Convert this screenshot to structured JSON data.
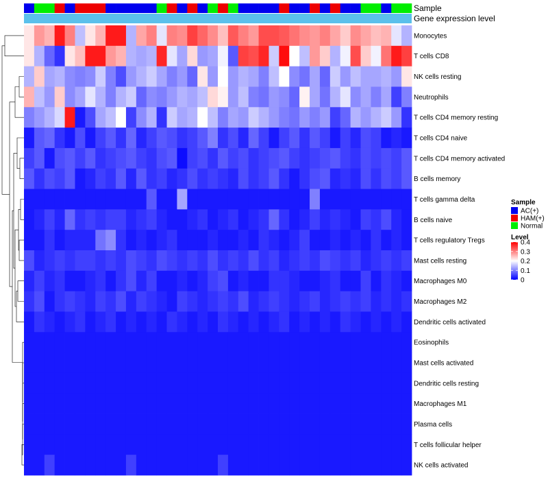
{
  "chart_data": {
    "type": "heatmap",
    "title": "",
    "annotation_labels": [
      "Sample",
      "Gene expression level"
    ],
    "rows": [
      "Monocytes",
      "T cells CD8",
      "NK cells resting",
      "Neutrophils",
      "T cells CD4 memory resting",
      "T cells CD4 naive",
      "T cells CD4 memory activated",
      "B cells memory",
      "T cells gamma delta",
      "B cells naive",
      "T cells regulatory  Tregs",
      "Mast cells resting",
      "Macrophages M0",
      "Macrophages M2",
      "Dendritic cells activated",
      "Eosinophils",
      "Mast cells activated",
      "Dendritic cells resting",
      "Macrophages M1",
      "Plasma cells",
      "T cells follicular helper",
      "NK cells activated"
    ],
    "n_columns": 38,
    "sample_groups": [
      "AC",
      "Normal",
      "Normal",
      "HAM",
      "AC",
      "HAM",
      "HAM",
      "HAM",
      "AC",
      "AC",
      "AC",
      "AC",
      "AC",
      "Normal",
      "HAM",
      "AC",
      "HAM",
      "AC",
      "Normal",
      "HAM",
      "Normal",
      "AC",
      "AC",
      "AC",
      "AC",
      "HAM",
      "AC",
      "AC",
      "HAM",
      "AC",
      "HAM",
      "AC",
      "AC",
      "Normal",
      "Normal",
      "AC",
      "Normal",
      "Normal"
    ],
    "values": [
      [
        0.22,
        0.28,
        0.26,
        0.38,
        0.3,
        0.15,
        0.22,
        0.26,
        0.38,
        0.38,
        0.14,
        0.27,
        0.3,
        0.18,
        0.3,
        0.29,
        0.35,
        0.32,
        0.29,
        0.25,
        0.33,
        0.3,
        0.28,
        0.34,
        0.34,
        0.33,
        0.31,
        0.29,
        0.28,
        0.3,
        0.27,
        0.24,
        0.29,
        0.27,
        0.25,
        0.26,
        0.18,
        0.14
      ],
      [
        0.22,
        0.14,
        0.08,
        0.04,
        0.22,
        0.25,
        0.38,
        0.38,
        0.28,
        0.26,
        0.14,
        0.13,
        0.14,
        0.37,
        0.18,
        0.13,
        0.23,
        0.12,
        0.13,
        0.19,
        0.07,
        0.35,
        0.34,
        0.37,
        0.16,
        0.39,
        0.2,
        0.15,
        0.28,
        0.24,
        0.14,
        0.19,
        0.34,
        0.24,
        0.19,
        0.31,
        0.38,
        0.35
      ],
      [
        0.14,
        0.24,
        0.13,
        0.14,
        0.11,
        0.1,
        0.11,
        0.16,
        0.1,
        0.06,
        0.12,
        0.14,
        0.16,
        0.13,
        0.1,
        0.12,
        0.08,
        0.22,
        0.12,
        0.2,
        0.12,
        0.14,
        0.13,
        0.1,
        0.15,
        0.2,
        0.11,
        0.09,
        0.13,
        0.08,
        0.16,
        0.12,
        0.15,
        0.13,
        0.13,
        0.14,
        0.12,
        0.22
      ],
      [
        0.26,
        0.15,
        0.12,
        0.24,
        0.11,
        0.13,
        0.18,
        0.14,
        0.1,
        0.14,
        0.16,
        0.08,
        0.11,
        0.1,
        0.12,
        0.14,
        0.13,
        0.15,
        0.23,
        0.21,
        0.12,
        0.15,
        0.1,
        0.09,
        0.12,
        0.11,
        0.08,
        0.21,
        0.13,
        0.09,
        0.14,
        0.18,
        0.11,
        0.13,
        0.1,
        0.13,
        0.05,
        0.1
      ],
      [
        0.1,
        0.12,
        0.14,
        0.17,
        0.38,
        0.02,
        0.06,
        0.13,
        0.15,
        0.2,
        0.05,
        0.11,
        0.14,
        0.04,
        0.16,
        0.13,
        0.14,
        0.2,
        0.15,
        0.1,
        0.13,
        0.12,
        0.16,
        0.14,
        0.12,
        0.1,
        0.09,
        0.12,
        0.1,
        0.12,
        0.05,
        0.08,
        0.14,
        0.12,
        0.14,
        0.16,
        0.12,
        0.04
      ],
      [
        0.02,
        0.07,
        0.08,
        0.04,
        0.02,
        0.06,
        0.02,
        0.05,
        0.07,
        0.04,
        0.08,
        0.03,
        0.05,
        0.07,
        0.06,
        0.04,
        0.05,
        0.07,
        0.1,
        0.04,
        0.06,
        0.03,
        0.08,
        0.05,
        0.02,
        0.05,
        0.07,
        0.04,
        0.07,
        0.05,
        0.02,
        0.05,
        0.03,
        0.06,
        0.05,
        0.02,
        0.03,
        0.02
      ],
      [
        0.05,
        0.07,
        0.02,
        0.06,
        0.07,
        0.05,
        0.07,
        0.04,
        0.05,
        0.06,
        0.07,
        0.05,
        0.04,
        0.06,
        0.07,
        0.01,
        0.05,
        0.06,
        0.04,
        0.07,
        0.05,
        0.06,
        0.04,
        0.05,
        0.06,
        0.07,
        0.05,
        0.04,
        0.05,
        0.06,
        0.07,
        0.05,
        0.04,
        0.06,
        0.05,
        0.06,
        0.05,
        0.07
      ],
      [
        0.07,
        0.04,
        0.06,
        0.05,
        0.07,
        0.02,
        0.03,
        0.05,
        0.04,
        0.07,
        0.03,
        0.07,
        0.04,
        0.05,
        0.03,
        0.04,
        0.06,
        0.04,
        0.05,
        0.04,
        0.03,
        0.06,
        0.04,
        0.05,
        0.07,
        0.04,
        0.02,
        0.04,
        0.06,
        0.07,
        0.03,
        0.04,
        0.03,
        0.06,
        0.04,
        0.06,
        0.05,
        0.07
      ],
      [
        0.02,
        0.02,
        0.02,
        0.02,
        0.02,
        0.02,
        0.02,
        0.02,
        0.02,
        0.02,
        0.02,
        0.02,
        0.07,
        0.02,
        0.02,
        0.13,
        0.02,
        0.02,
        0.02,
        0.02,
        0.02,
        0.02,
        0.02,
        0.02,
        0.02,
        0.02,
        0.02,
        0.02,
        0.1,
        0.02,
        0.02,
        0.02,
        0.02,
        0.02,
        0.02,
        0.02,
        0.02,
        0.02
      ],
      [
        0.02,
        0.03,
        0.05,
        0.03,
        0.08,
        0.04,
        0.05,
        0.04,
        0.05,
        0.05,
        0.03,
        0.04,
        0.05,
        0.03,
        0.02,
        0.02,
        0.03,
        0.04,
        0.02,
        0.03,
        0.04,
        0.02,
        0.03,
        0.04,
        0.08,
        0.04,
        0.02,
        0.03,
        0.05,
        0.03,
        0.04,
        0.03,
        0.02,
        0.05,
        0.04,
        0.06,
        0.03,
        0.02
      ],
      [
        0.02,
        0.02,
        0.04,
        0.02,
        0.03,
        0.03,
        0.03,
        0.09,
        0.11,
        0.04,
        0.02,
        0.03,
        0.02,
        0.03,
        0.04,
        0.02,
        0.02,
        0.02,
        0.03,
        0.02,
        0.02,
        0.03,
        0.02,
        0.04,
        0.03,
        0.02,
        0.03,
        0.05,
        0.02,
        0.02,
        0.03,
        0.02,
        0.03,
        0.02,
        0.04,
        0.02,
        0.03,
        0.02
      ],
      [
        0.06,
        0.03,
        0.04,
        0.05,
        0.04,
        0.05,
        0.05,
        0.04,
        0.05,
        0.04,
        0.06,
        0.05,
        0.04,
        0.06,
        0.05,
        0.04,
        0.05,
        0.04,
        0.06,
        0.04,
        0.05,
        0.04,
        0.06,
        0.04,
        0.05,
        0.03,
        0.04,
        0.05,
        0.04,
        0.06,
        0.05,
        0.04,
        0.05,
        0.03,
        0.04,
        0.05,
        0.04,
        0.05
      ],
      [
        0.03,
        0.05,
        0.03,
        0.04,
        0.02,
        0.02,
        0.03,
        0.04,
        0.02,
        0.04,
        0.06,
        0.03,
        0.05,
        0.02,
        0.02,
        0.03,
        0.02,
        0.03,
        0.05,
        0.06,
        0.02,
        0.03,
        0.02,
        0.02,
        0.04,
        0.04,
        0.03,
        0.02,
        0.02,
        0.03,
        0.04,
        0.02,
        0.02,
        0.05,
        0.02,
        0.04,
        0.03,
        0.02
      ],
      [
        0.04,
        0.06,
        0.02,
        0.04,
        0.05,
        0.04,
        0.03,
        0.05,
        0.04,
        0.06,
        0.03,
        0.05,
        0.04,
        0.03,
        0.02,
        0.05,
        0.04,
        0.03,
        0.04,
        0.05,
        0.04,
        0.06,
        0.03,
        0.04,
        0.05,
        0.04,
        0.03,
        0.04,
        0.05,
        0.03,
        0.04,
        0.05,
        0.04,
        0.05,
        0.03,
        0.04,
        0.03,
        0.04
      ],
      [
        0.02,
        0.04,
        0.03,
        0.02,
        0.03,
        0.04,
        0.02,
        0.03,
        0.04,
        0.02,
        0.03,
        0.02,
        0.03,
        0.02,
        0.04,
        0.03,
        0.02,
        0.03,
        0.02,
        0.04,
        0.03,
        0.02,
        0.03,
        0.02,
        0.03,
        0.04,
        0.02,
        0.03,
        0.02,
        0.03,
        0.02,
        0.04,
        0.03,
        0.02,
        0.03,
        0.02,
        0.03,
        0.02
      ],
      [
        0.02,
        0.02,
        0.02,
        0.02,
        0.02,
        0.02,
        0.02,
        0.02,
        0.02,
        0.02,
        0.02,
        0.02,
        0.02,
        0.02,
        0.02,
        0.02,
        0.02,
        0.02,
        0.02,
        0.02,
        0.02,
        0.02,
        0.02,
        0.02,
        0.02,
        0.02,
        0.02,
        0.02,
        0.02,
        0.02,
        0.02,
        0.02,
        0.02,
        0.02,
        0.02,
        0.02,
        0.02,
        0.02
      ],
      [
        0.02,
        0.02,
        0.02,
        0.02,
        0.02,
        0.02,
        0.02,
        0.02,
        0.02,
        0.02,
        0.02,
        0.02,
        0.02,
        0.02,
        0.02,
        0.02,
        0.02,
        0.02,
        0.02,
        0.02,
        0.02,
        0.02,
        0.02,
        0.02,
        0.02,
        0.02,
        0.02,
        0.02,
        0.02,
        0.02,
        0.02,
        0.02,
        0.02,
        0.02,
        0.02,
        0.02,
        0.02,
        0.02
      ],
      [
        0.02,
        0.02,
        0.02,
        0.02,
        0.02,
        0.02,
        0.02,
        0.02,
        0.02,
        0.02,
        0.02,
        0.02,
        0.02,
        0.02,
        0.02,
        0.02,
        0.02,
        0.02,
        0.02,
        0.02,
        0.02,
        0.02,
        0.02,
        0.02,
        0.02,
        0.02,
        0.02,
        0.02,
        0.02,
        0.02,
        0.02,
        0.02,
        0.02,
        0.02,
        0.02,
        0.02,
        0.02,
        0.02
      ],
      [
        0.02,
        0.02,
        0.02,
        0.02,
        0.02,
        0.02,
        0.02,
        0.02,
        0.02,
        0.02,
        0.02,
        0.02,
        0.02,
        0.02,
        0.02,
        0.02,
        0.02,
        0.02,
        0.02,
        0.02,
        0.02,
        0.02,
        0.02,
        0.02,
        0.02,
        0.02,
        0.02,
        0.02,
        0.02,
        0.02,
        0.02,
        0.02,
        0.02,
        0.02,
        0.02,
        0.02,
        0.02,
        0.02
      ],
      [
        0.02,
        0.02,
        0.02,
        0.02,
        0.02,
        0.02,
        0.02,
        0.02,
        0.02,
        0.02,
        0.02,
        0.02,
        0.02,
        0.02,
        0.02,
        0.02,
        0.02,
        0.02,
        0.02,
        0.02,
        0.02,
        0.02,
        0.02,
        0.02,
        0.02,
        0.02,
        0.02,
        0.02,
        0.02,
        0.02,
        0.02,
        0.02,
        0.02,
        0.02,
        0.02,
        0.02,
        0.02,
        0.02
      ],
      [
        0.02,
        0.02,
        0.02,
        0.02,
        0.02,
        0.02,
        0.02,
        0.02,
        0.02,
        0.02,
        0.02,
        0.02,
        0.02,
        0.02,
        0.02,
        0.02,
        0.02,
        0.02,
        0.02,
        0.02,
        0.02,
        0.02,
        0.02,
        0.02,
        0.02,
        0.02,
        0.02,
        0.02,
        0.02,
        0.02,
        0.02,
        0.02,
        0.02,
        0.02,
        0.02,
        0.02,
        0.02,
        0.02
      ],
      [
        0.02,
        0.02,
        0.05,
        0.02,
        0.02,
        0.02,
        0.02,
        0.02,
        0.02,
        0.02,
        0.05,
        0.02,
        0.02,
        0.02,
        0.02,
        0.02,
        0.02,
        0.02,
        0.02,
        0.05,
        0.02,
        0.02,
        0.02,
        0.02,
        0.02,
        0.02,
        0.02,
        0.02,
        0.02,
        0.02,
        0.02,
        0.02,
        0.02,
        0.02,
        0.02,
        0.02,
        0.02,
        0.02
      ]
    ],
    "legend_sample": {
      "title": "Sample",
      "entries": [
        {
          "label": "AC(+)",
          "color": "#0000ee"
        },
        {
          "label": "HAM(+)",
          "color": "#ee0000"
        },
        {
          "label": "Normal",
          "color": "#00ee00"
        }
      ]
    },
    "legend_level": {
      "title": "Level",
      "ticks": [
        "0.4",
        "0.3",
        "0.2",
        "0.1",
        "0"
      ],
      "range": [
        0,
        0.4
      ]
    },
    "colors": {
      "low": "#0000ff",
      "mid": "#ffffff",
      "high": "#ff0000",
      "expression_bar": "#5bc0eb",
      "dendrogram": "#000000"
    }
  }
}
